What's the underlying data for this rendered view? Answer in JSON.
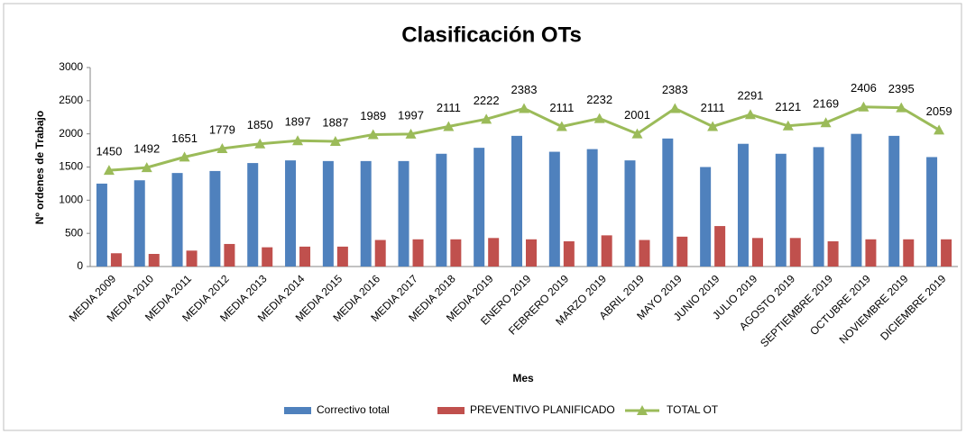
{
  "chart_data": {
    "type": "bar_line",
    "title": "Clasificación OTs",
    "x_label": "Mes",
    "y_label": "Nº ordenes de Trabajo",
    "categories": [
      "MEDIA 2009",
      "MEDIA 2010",
      "MEDIA 2011",
      "MEDIA 2012",
      "MEDIA 2013",
      "MEDIA 2014",
      "MEDIA 2015",
      "MEDIA 2016",
      "MEDIA 2017",
      "MEDIA 2018",
      "MEDIA 2019",
      "ENERO 2019",
      "FEBRERO 2019",
      "MARZO 2019",
      "ABRIL 2019",
      "MAYO 2019",
      "JUNIO 2019",
      "JULIO 2019",
      "AGOSTO 2019",
      "SEPTIEMBRE 2019",
      "OCTUBRE 2019",
      "NOVIEMBRE 2019",
      "DICIEMBRE 2019"
    ],
    "series": [
      {
        "name": "Correctivo total",
        "color": "#4f81bd",
        "kind": "bar",
        "values": [
          1250,
          1300,
          1410,
          1440,
          1560,
          1600,
          1590,
          1590,
          1590,
          1700,
          1790,
          1970,
          1730,
          1770,
          1600,
          1930,
          1500,
          1850,
          1700,
          1800,
          2000,
          1970,
          1650
        ]
      },
      {
        "name": "PREVENTIVO PLANIFICADO",
        "color": "#c0504d",
        "kind": "bar",
        "values": [
          200,
          190,
          240,
          340,
          290,
          300,
          300,
          400,
          410,
          410,
          430,
          410,
          380,
          470,
          400,
          450,
          610,
          430,
          430,
          380,
          410,
          410,
          410
        ]
      },
      {
        "name": "TOTAL OT",
        "color": "#9bbb59",
        "kind": "line",
        "values": [
          1450,
          1492,
          1651,
          1779,
          1850,
          1897,
          1887,
          1989,
          1997,
          2111,
          2222,
          2383,
          2111,
          2232,
          2001,
          2383,
          2111,
          2291,
          2121,
          2169,
          2406,
          2395,
          2059
        ]
      }
    ],
    "ylim": [
      0,
      3000
    ],
    "yticks": [
      0,
      500,
      1000,
      1500,
      2000,
      2500,
      3000
    ],
    "grid": false
  }
}
